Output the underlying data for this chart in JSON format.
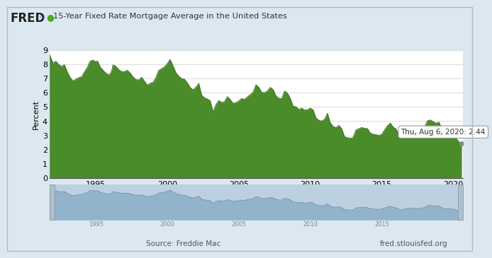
{
  "title": "15-Year Fixed Rate Mortgage Average in the United States",
  "ylabel": "Percent",
  "source_left": "Source: Freddie Mac",
  "source_right": "fred.stlouisfed.org",
  "tooltip_text": "Thu, Aug 6, 2020: 2.44",
  "tooltip_value": 2.44,
  "yticks": [
    0,
    1,
    2,
    3,
    4,
    5,
    6,
    7,
    8,
    9
  ],
  "xtick_years": [
    1995,
    2000,
    2005,
    2010,
    2015,
    2020
  ],
  "ylim": [
    0,
    9
  ],
  "fill_color": "#4a8c2a",
  "line_color": "#3a7020",
  "bg_color": "#ffffff",
  "outer_bg": "#dce8f0",
  "grid_color": "#cccccc",
  "dot_color": "#888888",
  "nav_fill_color": "#8aaec8",
  "nav_bg_color": "#bdd0df",
  "nav_handle_color": "#8090a0",
  "series": [
    [
      1991.75,
      8.69
    ],
    [
      1992.0,
      8.07
    ],
    [
      1992.2,
      8.2
    ],
    [
      1992.4,
      7.97
    ],
    [
      1992.6,
      7.83
    ],
    [
      1992.8,
      7.96
    ],
    [
      1993.0,
      7.46
    ],
    [
      1993.2,
      7.07
    ],
    [
      1993.4,
      6.81
    ],
    [
      1993.6,
      6.94
    ],
    [
      1993.8,
      7.05
    ],
    [
      1994.0,
      7.11
    ],
    [
      1994.2,
      7.45
    ],
    [
      1994.4,
      7.76
    ],
    [
      1994.6,
      8.21
    ],
    [
      1994.8,
      8.28
    ],
    [
      1995.0,
      8.16
    ],
    [
      1995.1,
      8.23
    ],
    [
      1995.2,
      8.05
    ],
    [
      1995.3,
      7.8
    ],
    [
      1995.5,
      7.57
    ],
    [
      1995.7,
      7.37
    ],
    [
      1995.9,
      7.25
    ],
    [
      1996.0,
      7.32
    ],
    [
      1996.1,
      7.5
    ],
    [
      1996.2,
      7.94
    ],
    [
      1996.4,
      7.85
    ],
    [
      1996.6,
      7.61
    ],
    [
      1996.8,
      7.47
    ],
    [
      1997.0,
      7.47
    ],
    [
      1997.2,
      7.57
    ],
    [
      1997.4,
      7.38
    ],
    [
      1997.6,
      7.1
    ],
    [
      1997.8,
      6.92
    ],
    [
      1998.0,
      6.88
    ],
    [
      1998.2,
      7.08
    ],
    [
      1998.4,
      6.8
    ],
    [
      1998.6,
      6.53
    ],
    [
      1998.8,
      6.65
    ],
    [
      1999.0,
      6.72
    ],
    [
      1999.2,
      7.05
    ],
    [
      1999.4,
      7.56
    ],
    [
      1999.6,
      7.68
    ],
    [
      1999.8,
      7.8
    ],
    [
      2000.0,
      8.04
    ],
    [
      2000.1,
      8.2
    ],
    [
      2000.2,
      8.33
    ],
    [
      2000.4,
      7.87
    ],
    [
      2000.6,
      7.4
    ],
    [
      2000.8,
      7.15
    ],
    [
      2001.0,
      6.98
    ],
    [
      2001.2,
      6.94
    ],
    [
      2001.4,
      6.68
    ],
    [
      2001.6,
      6.36
    ],
    [
      2001.8,
      6.2
    ],
    [
      2002.0,
      6.38
    ],
    [
      2002.2,
      6.65
    ],
    [
      2002.4,
      5.82
    ],
    [
      2002.6,
      5.64
    ],
    [
      2002.8,
      5.55
    ],
    [
      2003.0,
      5.43
    ],
    [
      2003.2,
      4.65
    ],
    [
      2003.4,
      5.15
    ],
    [
      2003.6,
      5.45
    ],
    [
      2003.8,
      5.3
    ],
    [
      2004.0,
      5.37
    ],
    [
      2004.2,
      5.72
    ],
    [
      2004.4,
      5.51
    ],
    [
      2004.6,
      5.25
    ],
    [
      2004.8,
      5.3
    ],
    [
      2005.0,
      5.41
    ],
    [
      2005.2,
      5.59
    ],
    [
      2005.4,
      5.52
    ],
    [
      2005.6,
      5.7
    ],
    [
      2005.8,
      5.86
    ],
    [
      2006.0,
      6.02
    ],
    [
      2006.2,
      6.55
    ],
    [
      2006.4,
      6.37
    ],
    [
      2006.6,
      6.02
    ],
    [
      2006.8,
      6.0
    ],
    [
      2007.0,
      6.11
    ],
    [
      2007.2,
      6.37
    ],
    [
      2007.4,
      6.21
    ],
    [
      2007.6,
      5.77
    ],
    [
      2007.8,
      5.6
    ],
    [
      2008.0,
      5.57
    ],
    [
      2008.2,
      6.11
    ],
    [
      2008.4,
      5.97
    ],
    [
      2008.6,
      5.6
    ],
    [
      2008.8,
      5.04
    ],
    [
      2009.0,
      5.01
    ],
    [
      2009.2,
      4.82
    ],
    [
      2009.4,
      4.91
    ],
    [
      2009.6,
      4.77
    ],
    [
      2009.8,
      4.8
    ],
    [
      2010.0,
      4.91
    ],
    [
      2010.2,
      4.79
    ],
    [
      2010.4,
      4.22
    ],
    [
      2010.6,
      4.06
    ],
    [
      2010.8,
      4.0
    ],
    [
      2011.0,
      4.13
    ],
    [
      2011.2,
      4.55
    ],
    [
      2011.4,
      3.88
    ],
    [
      2011.6,
      3.62
    ],
    [
      2011.8,
      3.55
    ],
    [
      2012.0,
      3.7
    ],
    [
      2012.2,
      3.47
    ],
    [
      2012.4,
      2.89
    ],
    [
      2012.6,
      2.84
    ],
    [
      2012.8,
      2.8
    ],
    [
      2013.0,
      2.85
    ],
    [
      2013.2,
      3.39
    ],
    [
      2013.4,
      3.47
    ],
    [
      2013.6,
      3.55
    ],
    [
      2013.8,
      3.5
    ],
    [
      2014.0,
      3.47
    ],
    [
      2014.2,
      3.16
    ],
    [
      2014.4,
      3.08
    ],
    [
      2014.6,
      3.05
    ],
    [
      2014.8,
      3.0
    ],
    [
      2015.0,
      3.07
    ],
    [
      2015.2,
      3.4
    ],
    [
      2015.4,
      3.68
    ],
    [
      2015.6,
      3.86
    ],
    [
      2015.8,
      3.58
    ],
    [
      2016.0,
      3.45
    ],
    [
      2016.2,
      3.02
    ],
    [
      2016.4,
      2.85
    ],
    [
      2016.6,
      3.1
    ],
    [
      2016.8,
      3.27
    ],
    [
      2017.0,
      3.36
    ],
    [
      2017.2,
      3.26
    ],
    [
      2017.4,
      3.16
    ],
    [
      2017.6,
      3.25
    ],
    [
      2017.8,
      3.29
    ],
    [
      2018.0,
      3.58
    ],
    [
      2018.2,
      4.03
    ],
    [
      2018.4,
      4.08
    ],
    [
      2018.6,
      3.96
    ],
    [
      2018.8,
      3.85
    ],
    [
      2019.0,
      3.93
    ],
    [
      2019.2,
      3.46
    ],
    [
      2019.4,
      3.18
    ],
    [
      2019.6,
      3.13
    ],
    [
      2019.8,
      3.1
    ],
    [
      2020.0,
      3.07
    ],
    [
      2020.15,
      2.85
    ],
    [
      2020.3,
      2.67
    ],
    [
      2020.45,
      2.5
    ],
    [
      2020.583,
      2.44
    ]
  ]
}
